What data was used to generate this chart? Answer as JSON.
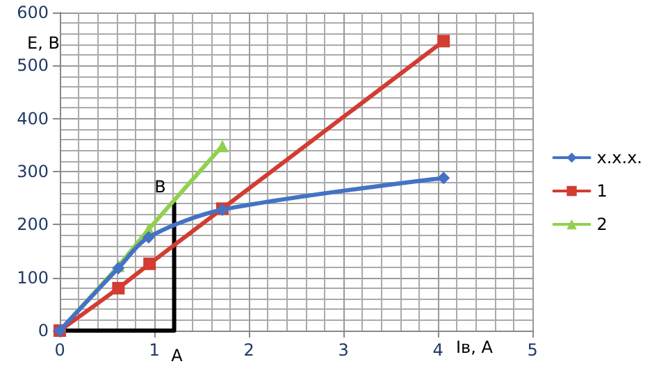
{
  "chart_data": {
    "type": "line",
    "xlabel": "Iв, А",
    "ylabel": "Е, В",
    "xlim": [
      0,
      5
    ],
    "xticks": [
      0,
      1,
      2,
      3,
      4,
      5
    ],
    "ylim": [
      0,
      600
    ],
    "yticks": [
      0,
      100,
      200,
      300,
      400,
      500,
      600
    ],
    "grid": true,
    "legend": "right",
    "line_style": "solid",
    "series": [
      {
        "name": "х.х.х.",
        "color": "#4472c4",
        "marker": "diamond",
        "x": [
          0,
          0.62,
          0.94,
          1.72,
          4.06
        ],
        "values": [
          0,
          118,
          176,
          228,
          288
        ]
      },
      {
        "name": "1",
        "color": "#d23c32",
        "marker": "square",
        "x": [
          0,
          0.62,
          0.95,
          1.72,
          4.06
        ],
        "values": [
          0,
          80,
          126,
          230,
          546
        ]
      },
      {
        "name": "2",
        "color": "#92d050",
        "marker": "triangle",
        "x": [
          0,
          0.62,
          0.94,
          1.72
        ],
        "values": [
          0,
          122,
          191,
          348
        ]
      },
      {
        "color": "#000000",
        "marker": "none",
        "x": [
          0,
          1.21,
          1.21
        ],
        "values": [
          0,
          0,
          240
        ]
      }
    ],
    "annotations": [
      {
        "text": "В",
        "x": 1.21,
        "y": 240
      },
      {
        "text": "А",
        "x": 1.21,
        "y": 0
      }
    ]
  }
}
